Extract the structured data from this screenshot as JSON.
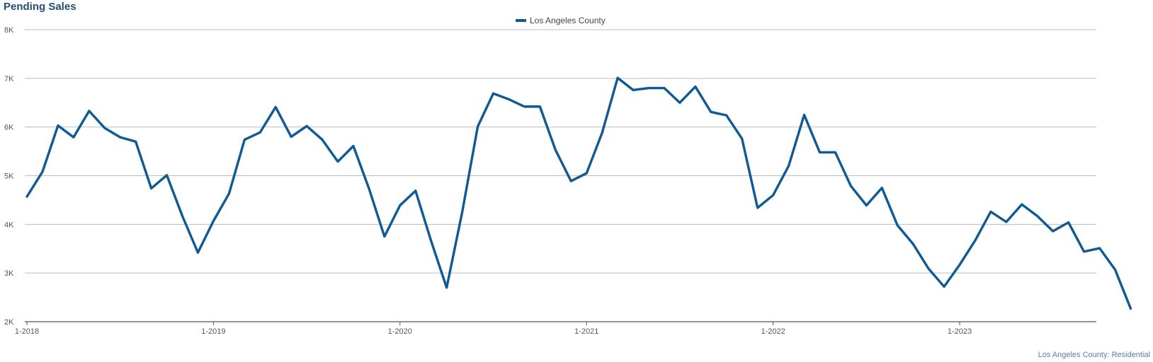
{
  "chart_data": {
    "type": "line",
    "title": "Pending Sales",
    "footer": "Los Angeles County: Residential",
    "x_tick_labels": [
      "1-2018",
      "1-2019",
      "1-2020",
      "1-2021",
      "1-2022",
      "1-2023"
    ],
    "y_tick_labels": [
      "2K",
      "3K",
      "4K",
      "5K",
      "6K",
      "7K",
      "8K"
    ],
    "ylim": [
      2000,
      8000
    ],
    "grid": true,
    "legend_position": "top-center",
    "color": "#0a5a9c",
    "series": [
      {
        "name": "Los Angeles County",
        "start_month": "1-2018",
        "values": [
          4570,
          5080,
          6030,
          5790,
          6330,
          5980,
          5790,
          5700,
          4740,
          5010,
          4170,
          3420,
          4070,
          4630,
          5740,
          5890,
          6410,
          5800,
          6020,
          5740,
          5290,
          5610,
          4740,
          3750,
          4390,
          4690,
          3660,
          2700,
          4250,
          6010,
          6690,
          6570,
          6420,
          6420,
          5530,
          4890,
          5050,
          5880,
          7010,
          6760,
          6800,
          6800,
          6500,
          6830,
          6310,
          6240,
          5760,
          4340,
          4600,
          5200,
          6250,
          5480,
          5480,
          4790,
          4390,
          4750,
          3980,
          3600,
          3090,
          2720,
          3170,
          3670,
          4260,
          4050,
          4410,
          4170,
          3860,
          4040,
          3440,
          3510,
          3070,
          2270
        ]
      }
    ]
  }
}
